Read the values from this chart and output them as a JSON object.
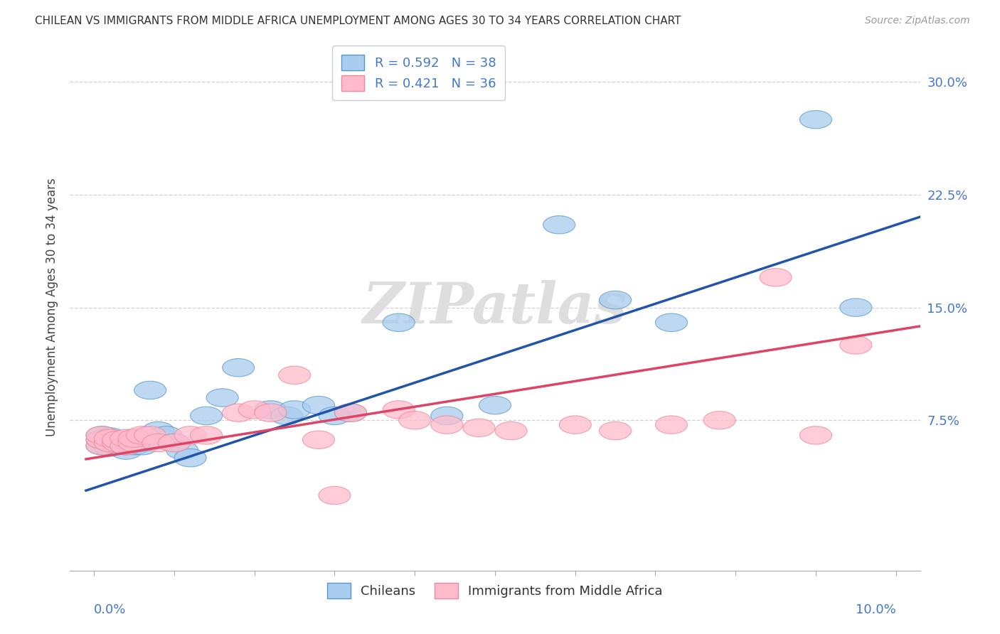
{
  "title": "CHILEAN VS IMMIGRANTS FROM MIDDLE AFRICA UNEMPLOYMENT AMONG AGES 30 TO 34 YEARS CORRELATION CHART",
  "source": "Source: ZipAtlas.com",
  "ylabel": "Unemployment Among Ages 30 to 34 years",
  "legend_label1": "Chileans",
  "legend_label2": "Immigrants from Middle Africa",
  "blue_fill": "#AACCEE",
  "blue_edge": "#5599CC",
  "blue_line_color": "#2255AA",
  "pink_fill": "#FFBBCC",
  "pink_edge": "#EE8899",
  "pink_line_color": "#DD4466",
  "label_color": "#4477CC",
  "watermark": "ZIPatlas",
  "right_ytick_labels": [
    "7.5%",
    "15.0%",
    "22.5%",
    "30.0%"
  ],
  "right_ytick_values": [
    0.075,
    0.15,
    0.225,
    0.3
  ],
  "blue_x": [
    0.001,
    0.001,
    0.001,
    0.002,
    0.002,
    0.002,
    0.003,
    0.003,
    0.003,
    0.004,
    0.004,
    0.005,
    0.005,
    0.006,
    0.006,
    0.007,
    0.008,
    0.009,
    0.01,
    0.011,
    0.012,
    0.014,
    0.016,
    0.018,
    0.022,
    0.024,
    0.025,
    0.028,
    0.03,
    0.032,
    0.038,
    0.044,
    0.05,
    0.058,
    0.065,
    0.072,
    0.09,
    0.095
  ],
  "blue_y": [
    0.058,
    0.062,
    0.065,
    0.057,
    0.06,
    0.064,
    0.058,
    0.06,
    0.062,
    0.055,
    0.058,
    0.063,
    0.058,
    0.06,
    0.058,
    0.095,
    0.068,
    0.065,
    0.06,
    0.055,
    0.05,
    0.078,
    0.09,
    0.11,
    0.082,
    0.078,
    0.082,
    0.085,
    0.078,
    0.08,
    0.14,
    0.078,
    0.085,
    0.205,
    0.155,
    0.14,
    0.275,
    0.15
  ],
  "pink_x": [
    0.001,
    0.001,
    0.001,
    0.002,
    0.002,
    0.003,
    0.003,
    0.004,
    0.004,
    0.005,
    0.005,
    0.006,
    0.007,
    0.008,
    0.01,
    0.012,
    0.014,
    0.018,
    0.02,
    0.022,
    0.025,
    0.028,
    0.032,
    0.038,
    0.04,
    0.044,
    0.048,
    0.052,
    0.06,
    0.065,
    0.072,
    0.078,
    0.085,
    0.09,
    0.095,
    0.03
  ],
  "pink_y": [
    0.058,
    0.062,
    0.065,
    0.06,
    0.063,
    0.06,
    0.062,
    0.058,
    0.063,
    0.06,
    0.063,
    0.065,
    0.065,
    0.06,
    0.06,
    0.065,
    0.065,
    0.08,
    0.082,
    0.08,
    0.105,
    0.062,
    0.08,
    0.082,
    0.075,
    0.072,
    0.07,
    0.068,
    0.072,
    0.068,
    0.072,
    0.075,
    0.17,
    0.065,
    0.125,
    0.025
  ],
  "xlim": [
    -0.003,
    0.103
  ],
  "ylim": [
    -0.025,
    0.325
  ],
  "blue_intercept": 0.03,
  "blue_slope": 1.75,
  "pink_intercept": 0.05,
  "pink_slope": 0.85
}
